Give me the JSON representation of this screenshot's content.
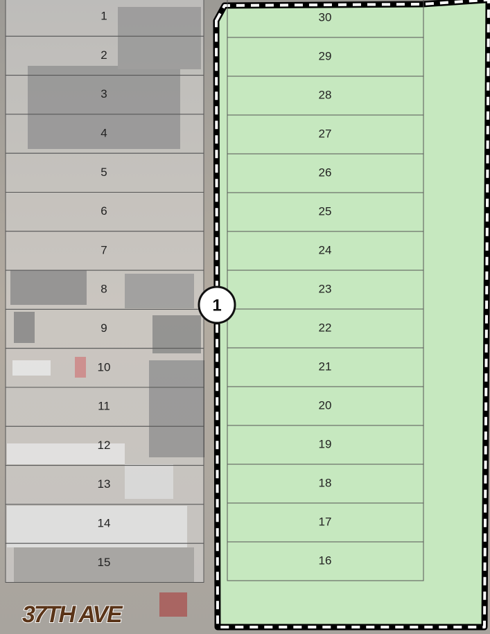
{
  "lots_left": [
    "1",
    "2",
    "3",
    "4",
    "5",
    "6",
    "7",
    "8",
    "9",
    "10",
    "11",
    "12",
    "13",
    "14",
    "15"
  ],
  "lots_right": [
    "30",
    "29",
    "28",
    "27",
    "26",
    "25",
    "24",
    "23",
    "22",
    "21",
    "20",
    "19",
    "18",
    "17",
    "16"
  ],
  "marker": "1",
  "street": "37TH AVE"
}
